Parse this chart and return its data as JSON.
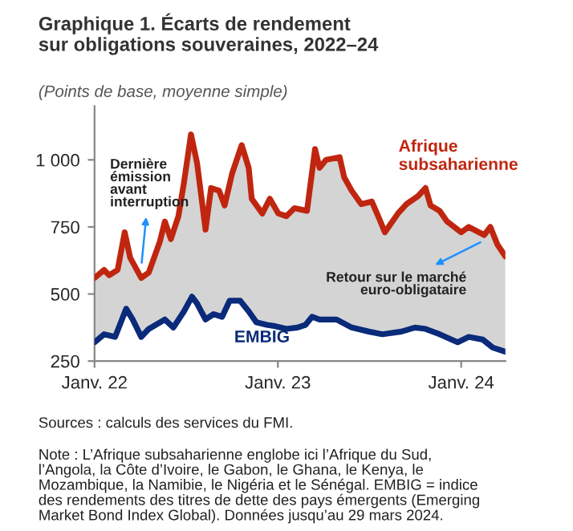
{
  "chart_data": {
    "type": "line",
    "title": "Graphique 1. Écarts de rendement\nsur obligations souveraines, 2022–24",
    "subtitle": "(Points de base, moyenne simple)",
    "series": [
      {
        "name": "Afrique subsaharienne",
        "color": "#c0260f",
        "x": [
          "2022-01-01",
          "2022-01-20",
          "2022-01-30",
          "2022-02-16",
          "2022-03-02",
          "2022-03-13",
          "2022-04-04",
          "2022-04-19",
          "2022-05-11",
          "2022-05-21",
          "2022-06-02",
          "2022-06-17",
          "2022-06-28",
          "2022-07-12",
          "2022-07-24",
          "2022-08-10",
          "2022-08-21",
          "2022-09-06",
          "2022-09-17",
          "2022-10-02",
          "2022-10-21",
          "2022-11-04",
          "2022-11-10",
          "2022-12-01",
          "2022-12-16",
          "2023-01-02",
          "2023-01-18",
          "2023-02-03",
          "2023-02-28",
          "2023-03-16",
          "2023-03-25",
          "2023-04-07",
          "2023-05-04",
          "2023-05-13",
          "2023-05-28",
          "2023-06-16",
          "2023-07-07",
          "2023-07-22",
          "2023-08-02",
          "2023-08-28",
          "2023-09-14",
          "2023-10-07",
          "2023-10-22",
          "2023-11-01",
          "2023-11-19",
          "2023-12-04",
          "2024-01-01",
          "2024-01-16",
          "2024-02-16",
          "2024-02-28",
          "2024-03-13",
          "2024-03-29"
        ],
        "values": [
          560,
          590,
          570,
          590,
          730,
          635,
          560,
          580,
          695,
          770,
          705,
          790,
          915,
          1095,
          990,
          740,
          895,
          885,
          830,
          950,
          1055,
          970,
          855,
          800,
          855,
          800,
          790,
          820,
          810,
          1040,
          970,
          1000,
          1010,
          935,
          885,
          835,
          845,
          780,
          730,
          800,
          835,
          865,
          895,
          830,
          810,
          770,
          730,
          750,
          720,
          750,
          685,
          640
        ]
      },
      {
        "name": "EMBIG",
        "color": "#0a2a7a",
        "x": [
          "2022-01-01",
          "2022-01-20",
          "2022-02-11",
          "2022-03-05",
          "2022-03-18",
          "2022-04-04",
          "2022-04-19",
          "2022-05-21",
          "2022-06-07",
          "2022-06-28",
          "2022-07-14",
          "2022-07-24",
          "2022-08-10",
          "2022-08-26",
          "2022-09-12",
          "2022-09-27",
          "2022-10-18",
          "2022-11-04",
          "2022-11-19",
          "2022-12-10",
          "2022-12-27",
          "2023-01-18",
          "2023-02-09",
          "2023-02-25",
          "2023-03-10",
          "2023-03-25",
          "2023-04-28",
          "2023-05-28",
          "2023-07-01",
          "2023-07-28",
          "2023-09-04",
          "2023-10-01",
          "2023-10-22",
          "2023-11-19",
          "2023-12-25",
          "2024-01-16",
          "2024-02-13",
          "2024-03-04",
          "2024-03-29"
        ],
        "values": [
          320,
          350,
          340,
          445,
          405,
          340,
          370,
          405,
          375,
          435,
          490,
          465,
          405,
          425,
          415,
          475,
          475,
          435,
          395,
          385,
          380,
          370,
          375,
          385,
          415,
          405,
          405,
          375,
          360,
          350,
          360,
          375,
          370,
          350,
          320,
          340,
          330,
          300,
          285
        ]
      }
    ],
    "xlim": [
      "2022-01-01",
      "2024-03-29"
    ],
    "xticks": [
      {
        "value": "2022-01-01",
        "label": "Janv. 22"
      },
      {
        "value": "2023-01-01",
        "label": "Janv. 23"
      },
      {
        "value": "2024-01-01",
        "label": "Janv. 24"
      }
    ],
    "ylim": [
      250,
      1200
    ],
    "yticks": [
      {
        "value": 250,
        "label": "250"
      },
      {
        "value": 500,
        "label": "500"
      },
      {
        "value": 750,
        "label": "750"
      },
      {
        "value": 1000,
        "label": "1 000"
      }
    ],
    "grid": false,
    "legend": false,
    "line_style": "solid",
    "marker": "none",
    "annotations": [
      {
        "text": "Dernière\némission\navant\ninterruption",
        "x": "2022-04-04",
        "y": 600
      },
      {
        "text": "Retour sur le marché\neuro-obligataire",
        "x": "2024-02-16",
        "y": 700
      },
      "Sources : calculs des services du FMI.",
      "Note : L’Afrique subsaharienne englobe ici l’Afrique du Sud,\nl’Angola, la Côte d’Ivoire, le Gabon, le Ghana, le Kenya, le\nMozambique, la Namibie, le Nigéria et le Sénégal. EMBIG = indice\ndes rendements des titres de dette des pays émergents (Emerging\nMarket Bond Index Global). Données jusqu’au 29 mars 2024."
    ]
  }
}
